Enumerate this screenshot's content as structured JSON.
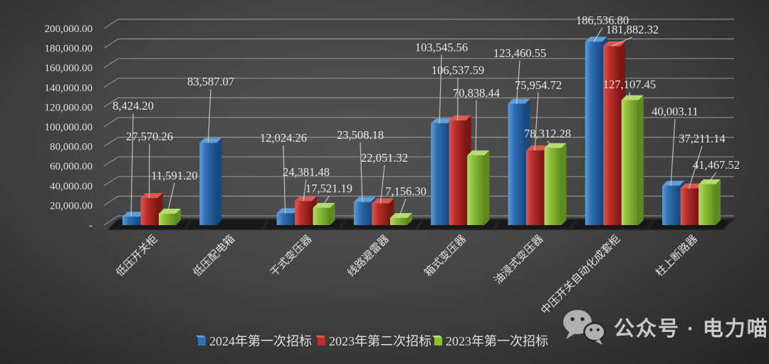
{
  "chart_data": {
    "type": "bar",
    "projection": "3d-column",
    "title": "",
    "xlabel": "",
    "ylabel": "",
    "ylim": [
      0,
      200000
    ],
    "ytick_step": 20000,
    "ytick_zero_label": "-",
    "grid": true,
    "legend_position": "bottom",
    "categories": [
      "低压开关柜",
      "低压配电箱",
      "干式变压器",
      "线路避雷器",
      "箱式变压器",
      "油浸式变压器",
      "中压开关自动化成套柜",
      "柱上断路器"
    ],
    "series": [
      {
        "name": "2024年第一次招标",
        "color": "#2e6fb3",
        "color_top": "#5f9dd8",
        "color_side": "#17497f",
        "values": [
          8424.2,
          83587.07,
          12024.26,
          23508.18,
          103545.56,
          123460.55,
          186536.8,
          40003.11
        ],
        "labels": [
          "8,424.20",
          "83,587.07",
          "12,024.26",
          "23,508.18",
          "103,545.56",
          "123,460.55",
          "186,536.80",
          "40,003.11"
        ]
      },
      {
        "name": "2023年第二次招标",
        "color": "#bb2f29",
        "color_top": "#d85950",
        "color_side": "#7c1613",
        "values": [
          27570.26,
          null,
          24381.48,
          22051.32,
          106537.59,
          75954.72,
          181882.32,
          37211.14
        ],
        "labels": [
          "27,570.26",
          null,
          "24,381.48",
          "22,051.32",
          "106,537.59",
          "75,954.72",
          "181,882.32",
          "37,211.14"
        ]
      },
      {
        "name": "2023年第一次招标",
        "color": "#8cbe37",
        "color_top": "#b5dc6c",
        "color_side": "#5e8a1f",
        "values": [
          11591.2,
          null,
          17521.19,
          7156.3,
          70838.44,
          78312.28,
          127107.45,
          41467.52
        ],
        "labels": [
          "11,591.20",
          null,
          "17,521.19",
          "7,156.30",
          "70,838.44",
          "78,312.28",
          "127,107.45",
          "41,467.52"
        ]
      }
    ],
    "colors": {
      "background_center": "#525252",
      "background_edge": "#171717",
      "gridline": "#a8a8a8",
      "text": "#e2e2e2",
      "leader_line": "#cfcfcf",
      "floor": "#1f1f1f"
    }
  },
  "watermark": {
    "text": "公众号 · 电力喵",
    "icon": "wechat-icon"
  }
}
